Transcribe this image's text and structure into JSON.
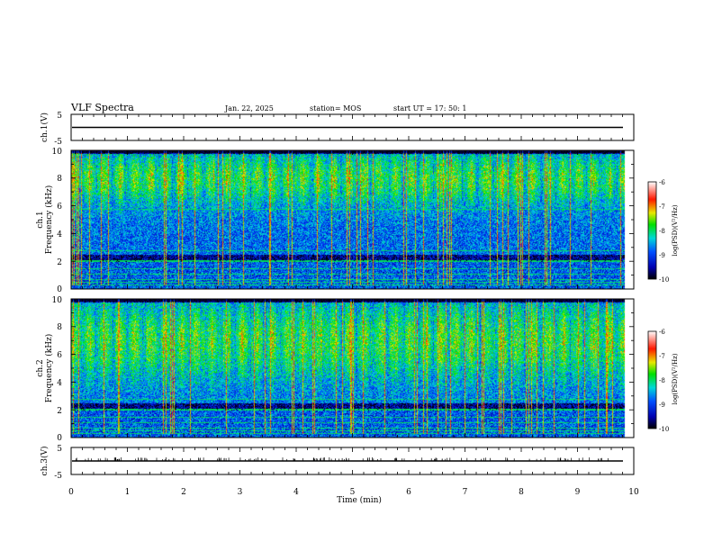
{
  "header": {
    "title": "VLF Spectra",
    "date": "Jan. 22, 2025",
    "station": "station= MOS",
    "start": "start  UT  =   17: 50: 1"
  },
  "chart_data": {
    "type": "heatmap",
    "x_label": "Time  (min)",
    "x_range": [
      0,
      10
    ],
    "x_ticks": [
      "0",
      "1",
      "2",
      "3",
      "4",
      "5",
      "6",
      "7",
      "8",
      "9",
      "10"
    ],
    "panels": [
      {
        "kind": "waveform",
        "label": "ch.1(V)",
        "y_range": [
          -5,
          5
        ],
        "y_ticks": [
          "5",
          "-5"
        ],
        "trace_value": 0
      },
      {
        "kind": "spectrogram",
        "label": "ch.1",
        "ylabel": "Frequency  (kHz)",
        "y_range": [
          0,
          10
        ],
        "y_ticks": [
          "0",
          "2",
          "4",
          "6",
          "8",
          "10"
        ],
        "main_band_khz": [
          2.5,
          9.8
        ],
        "peak_band_khz": [
          7.0,
          9.0
        ],
        "low_band_khz": [
          0,
          2.0
        ],
        "data_end_min": 9.83,
        "colorbar": {
          "label": "log(PSD)(V²/Hz)",
          "ticks": [
            "-6",
            "-7",
            "-8",
            "-9",
            "-10"
          ],
          "range": [
            -10,
            -6
          ]
        }
      },
      {
        "kind": "spectrogram",
        "label": "ch.2",
        "ylabel": "Frequency  (kHz)",
        "y_range": [
          0,
          10
        ],
        "y_ticks": [
          "0",
          "2",
          "4",
          "6",
          "8",
          "10"
        ],
        "main_band_khz": [
          2.5,
          9.8
        ],
        "peak_band_khz": [
          5.5,
          8.5
        ],
        "low_band_khz": [
          0,
          2.0
        ],
        "data_end_min": 9.83,
        "colorbar": {
          "label": "log(PSD)(V²/Hz)",
          "ticks": [
            "-6",
            "-7",
            "-8",
            "-9",
            "-10"
          ],
          "range": [
            -10,
            -6
          ]
        }
      },
      {
        "kind": "waveform",
        "label": "ch.3(V)",
        "y_range": [
          -5,
          5
        ],
        "y_ticks": [
          "5",
          "-5"
        ],
        "trace_value": 0
      }
    ]
  }
}
